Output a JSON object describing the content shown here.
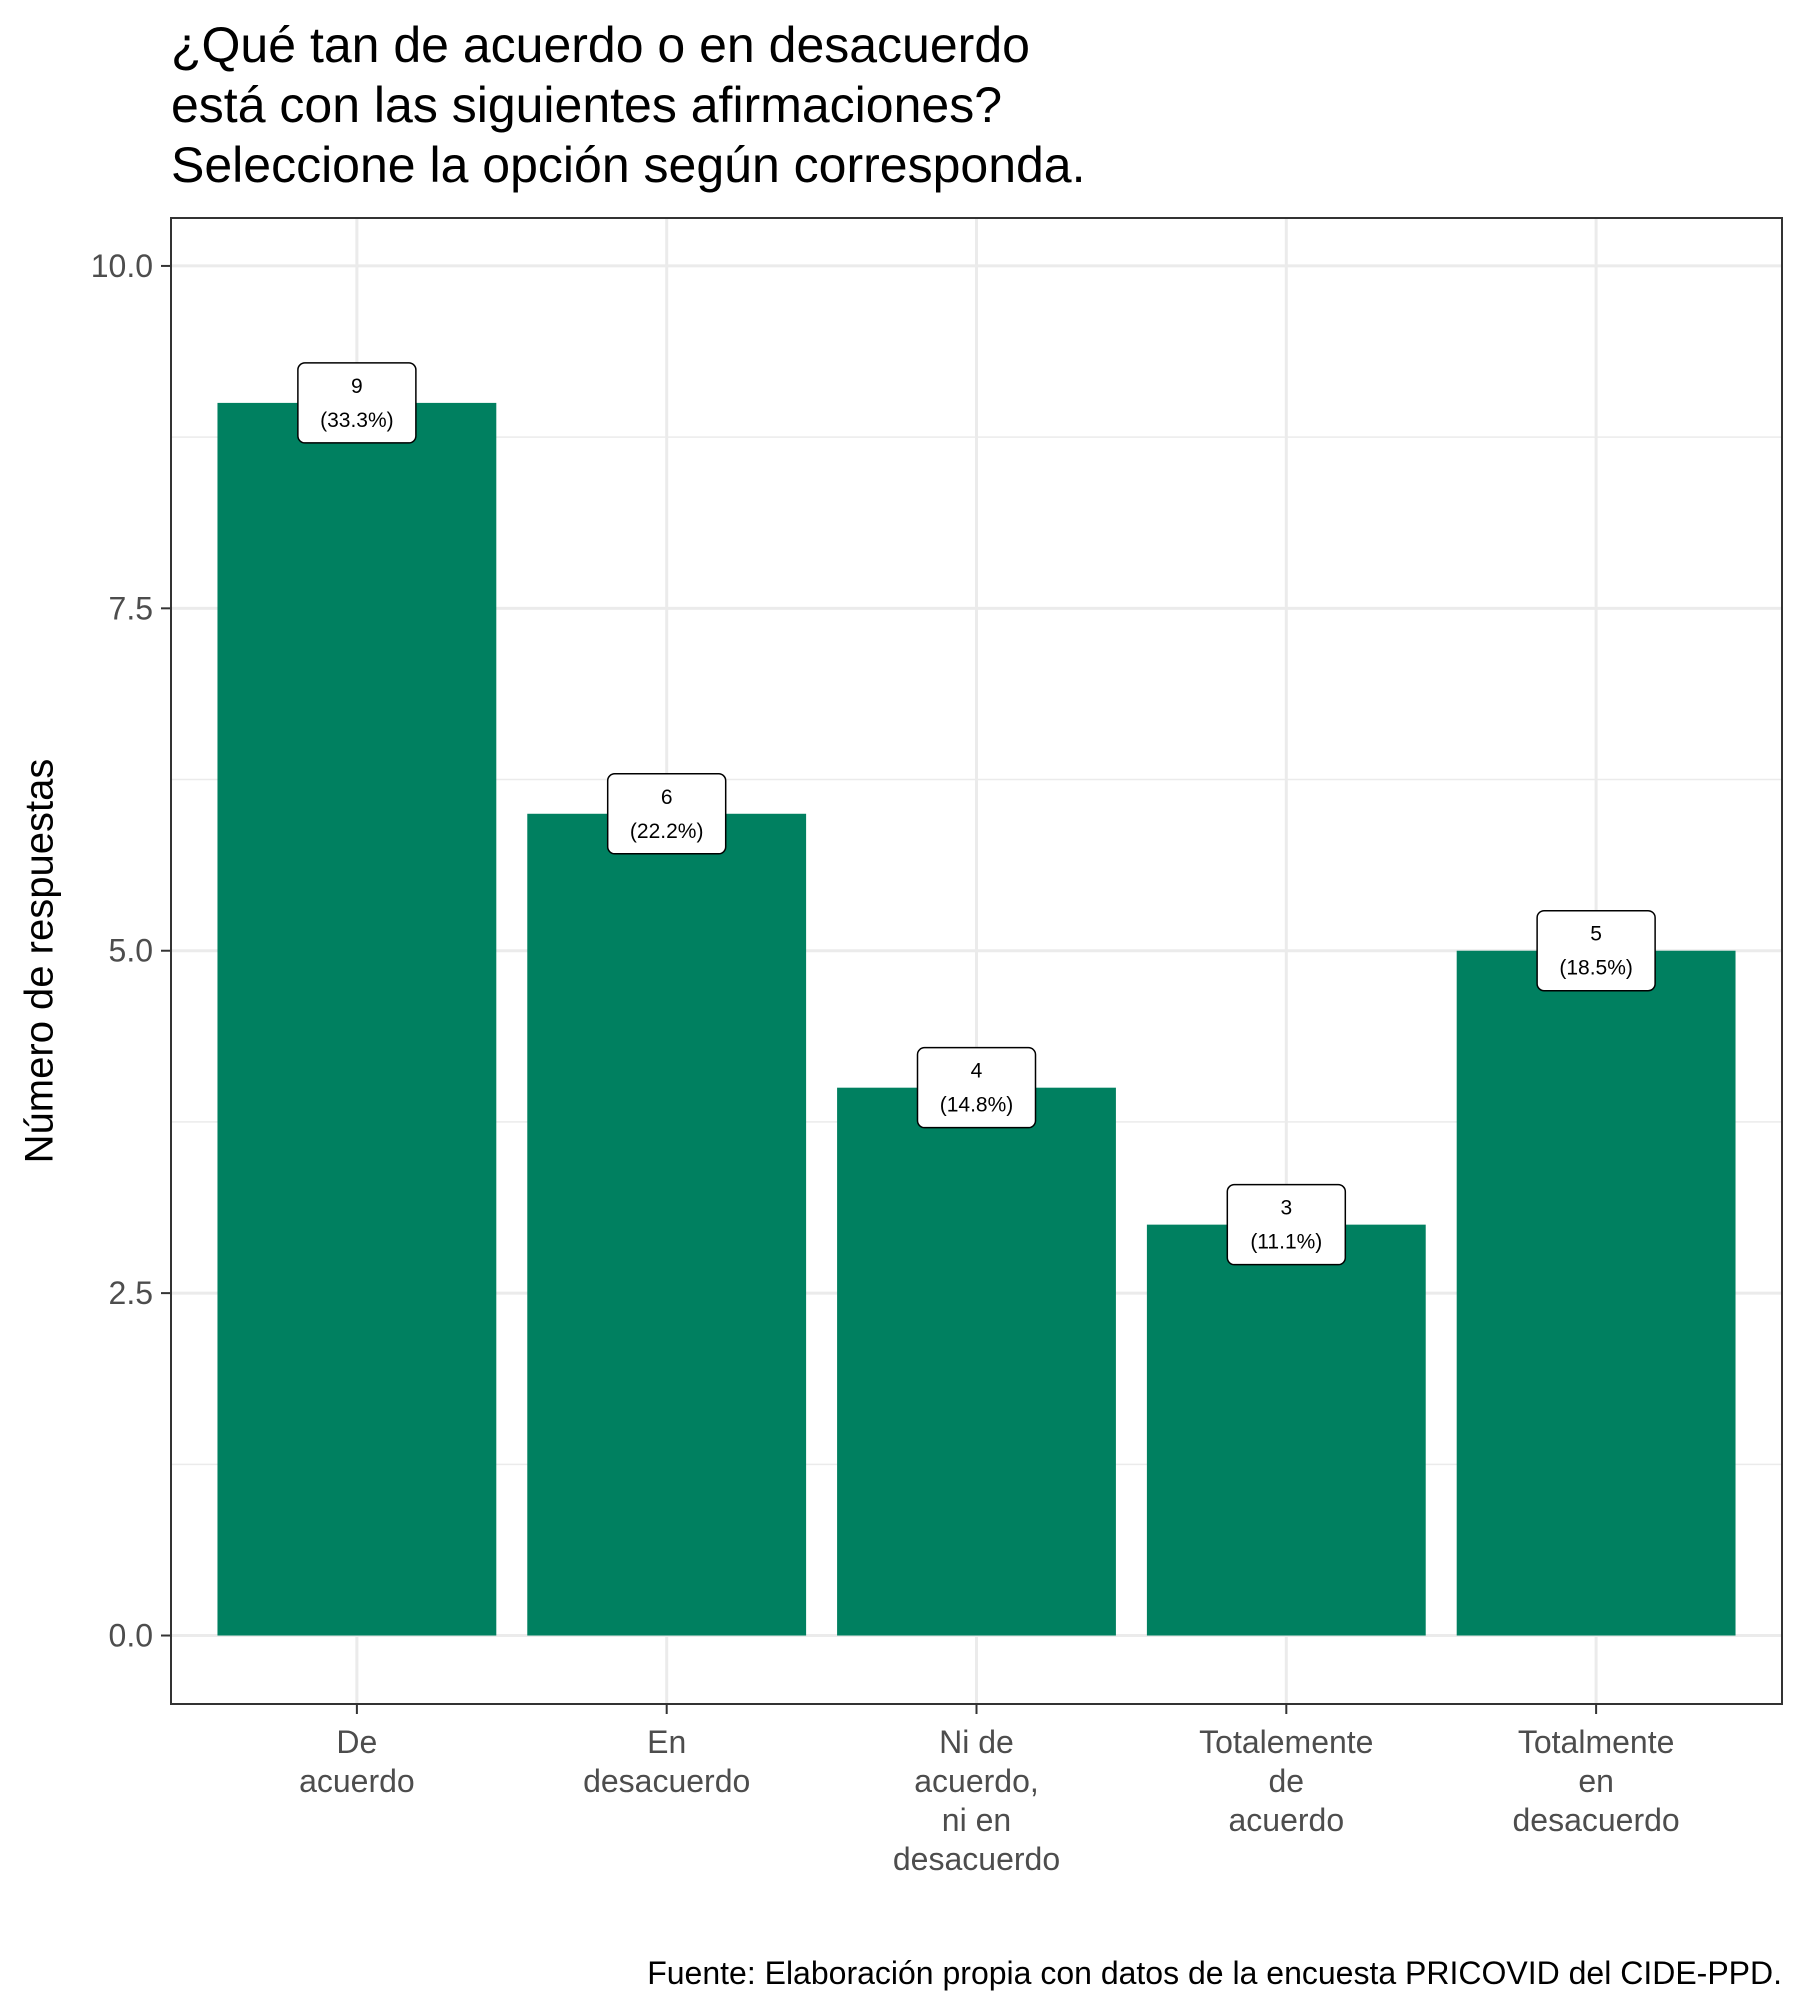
{
  "chart_data": {
    "type": "bar",
    "title_lines": [
      "¿Qué tan de acuerdo o en desacuerdo",
      "está con las siguientes afirmaciones?",
      "Seleccione la opción según corresponda."
    ],
    "xlabel": "",
    "ylabel": "Número de respuestas",
    "caption": "Fuente: Elaboración propia con datos de la encuesta PRICOVID del CIDE-PPD.",
    "categories": [
      [
        "De",
        "acuerdo"
      ],
      [
        "En",
        "desacuerdo"
      ],
      [
        "Ni de",
        "acuerdo,",
        "ni en",
        "desacuerdo"
      ],
      [
        "Totalemente",
        "de",
        "acuerdo"
      ],
      [
        "Totalmente",
        "en",
        "desacuerdo"
      ]
    ],
    "values": [
      9,
      6,
      4,
      3,
      5
    ],
    "labels": [
      [
        "9",
        "(33.3%)"
      ],
      [
        "6",
        "(22.2%)"
      ],
      [
        "4",
        "(14.8%)"
      ],
      [
        "3",
        "(11.1%)"
      ],
      [
        "5",
        "(18.5%)"
      ]
    ],
    "yticks": [
      "0.0",
      "2.5",
      "5.0",
      "7.5",
      "10.0"
    ],
    "ytick_values": [
      0,
      2.5,
      5,
      7.5,
      10
    ],
    "ylim": [
      -0.5,
      10.35
    ],
    "bar_color": "#008060",
    "grid": true,
    "legend": "none"
  }
}
